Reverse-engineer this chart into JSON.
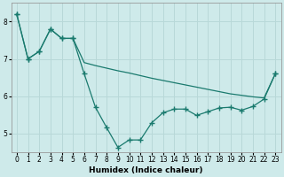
{
  "xlabel": "Humidex (Indice chaleur)",
  "background_color": "#ceeaea",
  "grid_color": "#b8d8d8",
  "line_color": "#1a7a6e",
  "xlim": [
    -0.5,
    23.5
  ],
  "ylim": [
    4.5,
    8.5
  ],
  "yticks": [
    5,
    6,
    7,
    8
  ],
  "xticks": [
    0,
    1,
    2,
    3,
    4,
    5,
    6,
    7,
    8,
    9,
    10,
    11,
    12,
    13,
    14,
    15,
    16,
    17,
    18,
    19,
    20,
    21,
    22,
    23
  ],
  "upper_x": [
    0,
    1,
    2,
    3,
    4,
    5,
    6,
    7,
    8,
    9,
    10,
    11,
    12,
    13,
    14,
    15,
    16,
    17,
    18,
    19,
    20,
    21,
    22,
    23
  ],
  "upper_y": [
    8.2,
    7.0,
    7.2,
    7.8,
    7.55,
    7.55,
    6.9,
    6.82,
    6.75,
    6.68,
    6.62,
    6.55,
    6.48,
    6.42,
    6.36,
    6.3,
    6.24,
    6.18,
    6.12,
    6.06,
    6.02,
    5.98,
    5.95,
    6.6
  ],
  "upper_markers": [
    0,
    1,
    2,
    3,
    4,
    5,
    23
  ],
  "lower_x": [
    0,
    1,
    2,
    3,
    4,
    5,
    6,
    7,
    8,
    9,
    10,
    11,
    12,
    13,
    14,
    15,
    16,
    17,
    18,
    19,
    20,
    21,
    22,
    23
  ],
  "lower_y": [
    8.2,
    7.0,
    7.2,
    7.8,
    7.55,
    7.55,
    6.6,
    5.7,
    5.15,
    4.62,
    4.82,
    4.82,
    5.28,
    5.55,
    5.65,
    5.65,
    5.48,
    5.58,
    5.68,
    5.7,
    5.62,
    5.72,
    5.92,
    6.6
  ],
  "lower_markers": [
    0,
    1,
    2,
    3,
    4,
    5,
    6,
    7,
    8,
    9,
    10,
    11,
    12,
    13,
    14,
    15,
    16,
    17,
    18,
    19,
    20,
    21,
    22,
    23
  ]
}
